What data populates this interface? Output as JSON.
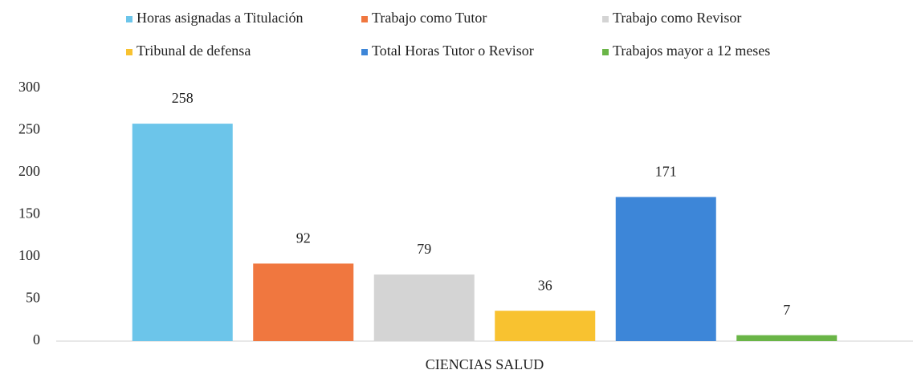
{
  "chart_data": {
    "type": "bar",
    "categories": [
      "CIENCIAS SALUD"
    ],
    "series": [
      {
        "name": "Horas asignadas a Titulación",
        "color": "#6cc5ea",
        "values": [
          258
        ]
      },
      {
        "name": "Trabajo como Tutor",
        "color": "#f0773f",
        "values": [
          92
        ]
      },
      {
        "name": "Trabajo como Revisor",
        "color": "#d4d4d4",
        "values": [
          79
        ]
      },
      {
        "name": "Tribunal de defensa",
        "color": "#f8c230",
        "values": [
          36
        ]
      },
      {
        "name": "Total Horas Tutor o Revisor",
        "color": "#3d86d8",
        "values": [
          171
        ]
      },
      {
        "name": "Trabajos mayor a 12 meses",
        "color": "#6ab547",
        "values": [
          7
        ]
      }
    ],
    "ylim": [
      0,
      300
    ],
    "yticks": [
      0,
      50,
      100,
      150,
      200,
      250,
      300
    ],
    "grid": false,
    "legend": "top"
  }
}
